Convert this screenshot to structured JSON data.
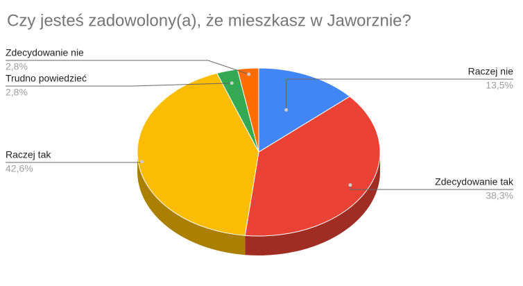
{
  "chart_data": {
    "type": "pie",
    "title": "Czy jesteś zadowolony(a), że mieszkasz w Jaworznie?",
    "categories": [
      "Raczej nie",
      "Zdecydowanie tak",
      "Raczej tak",
      "Trudno powiedzieć",
      "Zdecydowanie nie"
    ],
    "values": [
      13.5,
      38.3,
      42.6,
      2.8,
      2.8
    ],
    "value_labels": [
      "13,5%",
      "38,3%",
      "42,6%",
      "2,8%",
      "2,8%"
    ],
    "colors": [
      "#4285f4",
      "#ea4335",
      "#fbbc04",
      "#34a853",
      "#ff6d01"
    ],
    "three_d": true
  }
}
